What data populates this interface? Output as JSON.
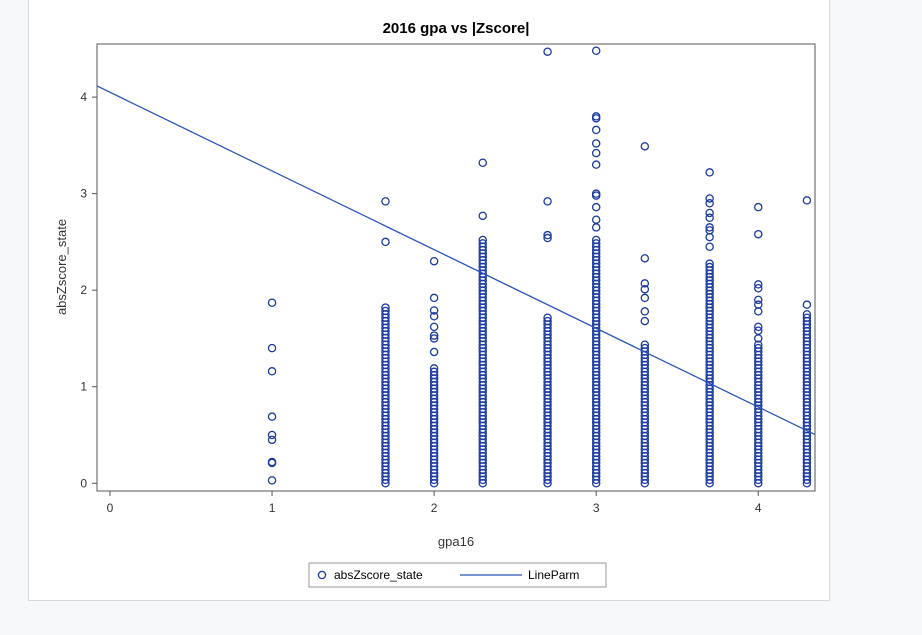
{
  "chart_data": {
    "type": "scatter",
    "title": "2016 gpa vs |Zscore|",
    "xlabel": "gpa16",
    "ylabel": "absZscore_state",
    "xlim": [
      -0.08,
      4.35
    ],
    "ylim": [
      -0.08,
      4.55
    ],
    "xticks": [
      0,
      1,
      2,
      3,
      4
    ],
    "yticks": [
      0,
      1,
      2,
      3,
      4
    ],
    "grid": false,
    "legend_position": "bottom",
    "legend": [
      {
        "name": "absZscore_state",
        "marker": "circle"
      },
      {
        "name": "LineParm",
        "marker": "line"
      }
    ],
    "series": [
      {
        "name": "absZscore_state",
        "color": "#1a3a9e",
        "columns": [
          {
            "x": 1.0,
            "y": [
              0.03,
              0.21,
              0.22,
              0.45,
              0.5,
              0.69,
              1.16,
              1.4,
              1.87
            ]
          },
          {
            "x": 1.7,
            "range": [
              0.0,
              1.82
            ],
            "y": [
              2.5,
              2.92
            ]
          },
          {
            "x": 2.0,
            "range": [
              0.0,
              1.2
            ],
            "y": [
              1.36,
              1.5,
              1.53,
              1.62,
              1.73,
              1.79,
              1.92,
              2.3
            ]
          },
          {
            "x": 2.3,
            "range": [
              0.0,
              2.55
            ],
            "y": [
              2.77,
              3.32
            ]
          },
          {
            "x": 2.7,
            "range": [
              0.0,
              1.72
            ],
            "y": [
              2.54,
              2.57,
              2.92,
              4.47
            ]
          },
          {
            "x": 3.0,
            "range": [
              0.0,
              2.55
            ],
            "y": [
              2.65,
              2.73,
              2.86,
              2.98,
              3.0,
              3.3,
              3.42,
              3.52,
              3.66,
              3.78,
              3.8,
              4.48
            ]
          },
          {
            "x": 3.3,
            "range": [
              0.0,
              1.45
            ],
            "y": [
              1.68,
              1.78,
              1.92,
              2.01,
              2.07,
              2.33,
              3.49
            ]
          },
          {
            "x": 3.7,
            "range": [
              0.0,
              2.3
            ],
            "y": [
              2.45,
              2.55,
              2.62,
              2.65,
              2.75,
              2.8,
              2.9,
              2.95,
              3.22
            ]
          },
          {
            "x": 4.0,
            "range": [
              0.0,
              1.45
            ],
            "y": [
              1.5,
              1.58,
              1.62,
              1.78,
              1.85,
              1.9,
              2.02,
              2.06,
              2.58,
              2.86
            ]
          },
          {
            "x": 4.3,
            "range": [
              0.0,
              1.75
            ],
            "y": [
              1.85,
              2.93
            ]
          }
        ]
      },
      {
        "name": "LineParm",
        "color": "#2b54b8",
        "intercept": 4.05,
        "slope": -0.815
      }
    ]
  }
}
